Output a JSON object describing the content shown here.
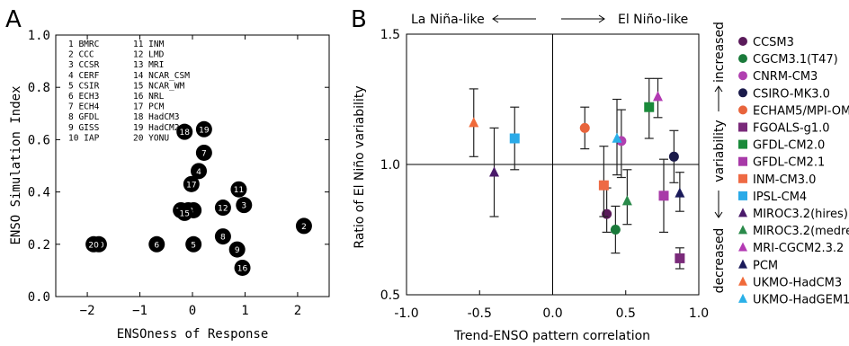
{
  "chart_data": [
    {
      "panel_label": "A",
      "type": "scatter",
      "xlabel": "ENSOness of Response",
      "ylabel": "ENSO Simulation Index",
      "xlim": [
        -2.6,
        2.6
      ],
      "ylim": [
        0.0,
        1.0
      ],
      "x_ticks": [
        -2,
        -1,
        0,
        1,
        2
      ],
      "x_tick_labels": [
        "−2",
        "−1",
        "0",
        "1",
        "2"
      ],
      "y_ticks": [
        0.0,
        0.2,
        0.4,
        0.6,
        0.8,
        1.0
      ],
      "y_tick_labels": [
        "0.0",
        "0.2",
        "0.4",
        "0.6",
        "0.8",
        "1.0"
      ],
      "grid": false,
      "model_key_column_1": [
        "1 BMRC",
        "2 CCC",
        "3 CCSR",
        "4 CERF",
        "5 CSIR",
        "6 ECH3",
        "7 ECH4",
        "8 GFDL",
        "9 GISS",
        "10 IAP"
      ],
      "model_key_column_2": [
        "11 INM",
        "12 LMD",
        "13 MRI",
        "14 NCAR_CSM",
        "15 NCAR_WM",
        "16 NRL",
        "17 PCM",
        "18 HadCM3",
        "19 HadCM2",
        "20 YONU"
      ],
      "points": [
        {
          "id": "1",
          "x": 0.02,
          "y": 0.33
        },
        {
          "id": "2",
          "x": 2.12,
          "y": 0.27
        },
        {
          "id": "3",
          "x": 0.98,
          "y": 0.35
        },
        {
          "id": "4",
          "x": 0.12,
          "y": 0.48
        },
        {
          "id": "5",
          "x": 0.02,
          "y": 0.2
        },
        {
          "id": "6",
          "x": -0.68,
          "y": 0.2
        },
        {
          "id": "7",
          "x": 0.22,
          "y": 0.55
        },
        {
          "id": "8",
          "x": 0.58,
          "y": 0.23
        },
        {
          "id": "9",
          "x": 0.85,
          "y": 0.18
        },
        {
          "id": "10",
          "x": -1.78,
          "y": 0.2
        },
        {
          "id": "11",
          "x": 0.88,
          "y": 0.41
        },
        {
          "id": "12",
          "x": 0.58,
          "y": 0.34
        },
        {
          "id": "13",
          "x": -0.08,
          "y": 0.33
        },
        {
          "id": "14",
          "x": -0.22,
          "y": 0.33
        },
        {
          "id": "15",
          "x": -0.15,
          "y": 0.32
        },
        {
          "id": "16",
          "x": 0.95,
          "y": 0.11
        },
        {
          "id": "17",
          "x": -0.02,
          "y": 0.43
        },
        {
          "id": "18",
          "x": -0.15,
          "y": 0.63
        },
        {
          "id": "19",
          "x": 0.22,
          "y": 0.64
        },
        {
          "id": "20",
          "x": -1.88,
          "y": 0.2
        }
      ]
    },
    {
      "panel_label": "B",
      "type": "scatter",
      "xlabel": "Trend-ENSO pattern correlation",
      "ylabel": "Ratio of El Niño variability",
      "xlim": [
        -1.0,
        1.0
      ],
      "ylim": [
        0.5,
        1.5
      ],
      "x_ticks": [
        -1.0,
        -0.5,
        0.0,
        0.5,
        1.0
      ],
      "x_tick_labels": [
        "-1.0",
        "-0.5",
        "0.0",
        "0.5",
        "1.0"
      ],
      "y_ticks": [
        0.5,
        1.0,
        1.5
      ],
      "y_tick_labels": [
        "0.5",
        "1.0",
        "1.5"
      ],
      "grid": false,
      "reference_lines": {
        "x": 0.0,
        "y": 1.0
      },
      "top_annotation_left": "La Niña-like",
      "top_annotation_right": "El Niño-like",
      "right_annotation_low": "decreased",
      "right_annotation_mid": "variability",
      "right_annotation_high": "increased",
      "legend_position": "right",
      "series": [
        {
          "name": "CCSM3",
          "marker": "circle",
          "color": "#5a1a5a",
          "x": 0.37,
          "y": 0.81,
          "yerr_low": 0.74,
          "yerr_high": 0.91
        },
        {
          "name": "CGCM3.1(T47)",
          "marker": "circle",
          "color": "#1a7a3a",
          "x": 0.43,
          "y": 0.75,
          "yerr_low": 0.66,
          "yerr_high": 0.84
        },
        {
          "name": "CNRM-CM3",
          "marker": "circle",
          "color": "#b040b0",
          "x": 0.47,
          "y": 1.09,
          "yerr_low": 0.95,
          "yerr_high": 1.21
        },
        {
          "name": "CSIRO-MK3.0",
          "marker": "circle",
          "color": "#1a1a4a",
          "x": 0.83,
          "y": 1.03,
          "yerr_low": 0.93,
          "yerr_high": 1.13
        },
        {
          "name": "ECHAM5/MPI-OM",
          "marker": "circle",
          "color": "#e8643c",
          "x": 0.22,
          "y": 1.14,
          "yerr_low": 1.06,
          "yerr_high": 1.22
        },
        {
          "name": "FGOALS-g1.0",
          "marker": "square",
          "color": "#7a2a7a",
          "x": 0.87,
          "y": 0.64,
          "yerr_low": 0.6,
          "yerr_high": 0.68
        },
        {
          "name": "GFDL-CM2.0",
          "marker": "square",
          "color": "#1a8a3a",
          "x": 0.66,
          "y": 1.22,
          "yerr_low": 1.1,
          "yerr_high": 1.33
        },
        {
          "name": "GFDL-CM2.1",
          "marker": "square",
          "color": "#a83aa8",
          "x": 0.76,
          "y": 0.88,
          "yerr_low": 0.74,
          "yerr_high": 1.02
        },
        {
          "name": "INM-CM3.0",
          "marker": "square",
          "color": "#ee6a44",
          "x": 0.35,
          "y": 0.92,
          "yerr_low": 0.8,
          "yerr_high": 1.07
        },
        {
          "name": "IPSL-CM4",
          "marker": "square",
          "color": "#2aaae8",
          "x": -0.26,
          "y": 1.1,
          "yerr_low": 0.98,
          "yerr_high": 1.22
        },
        {
          "name": "MIROC3.2(hires)",
          "marker": "triangle",
          "color": "#4a1a6a",
          "x": -0.4,
          "y": 0.97,
          "yerr_low": 0.8,
          "yerr_high": 1.14
        },
        {
          "name": "MIROC3.2(medres)",
          "marker": "triangle",
          "color": "#2a8a4a",
          "x": 0.51,
          "y": 0.86,
          "yerr_low": 0.77,
          "yerr_high": 0.98
        },
        {
          "name": "MRI-CGCM2.3.2",
          "marker": "triangle",
          "color": "#b33ab3",
          "x": 0.72,
          "y": 1.26,
          "yerr_low": 1.18,
          "yerr_high": 1.33
        },
        {
          "name": "PCM",
          "marker": "triangle",
          "color": "#1a1a5a",
          "x": 0.87,
          "y": 0.89,
          "yerr_low": 0.82,
          "yerr_high": 0.97
        },
        {
          "name": "UKMO-HadCM3",
          "marker": "triangle",
          "color": "#f06a3a",
          "x": -0.54,
          "y": 1.16,
          "yerr_low": 1.03,
          "yerr_high": 1.29
        },
        {
          "name": "UKMO-HadGEM1",
          "marker": "triangle",
          "color": "#2ab0e8",
          "x": 0.44,
          "y": 1.1,
          "yerr_low": 0.96,
          "yerr_high": 1.25
        }
      ]
    }
  ]
}
